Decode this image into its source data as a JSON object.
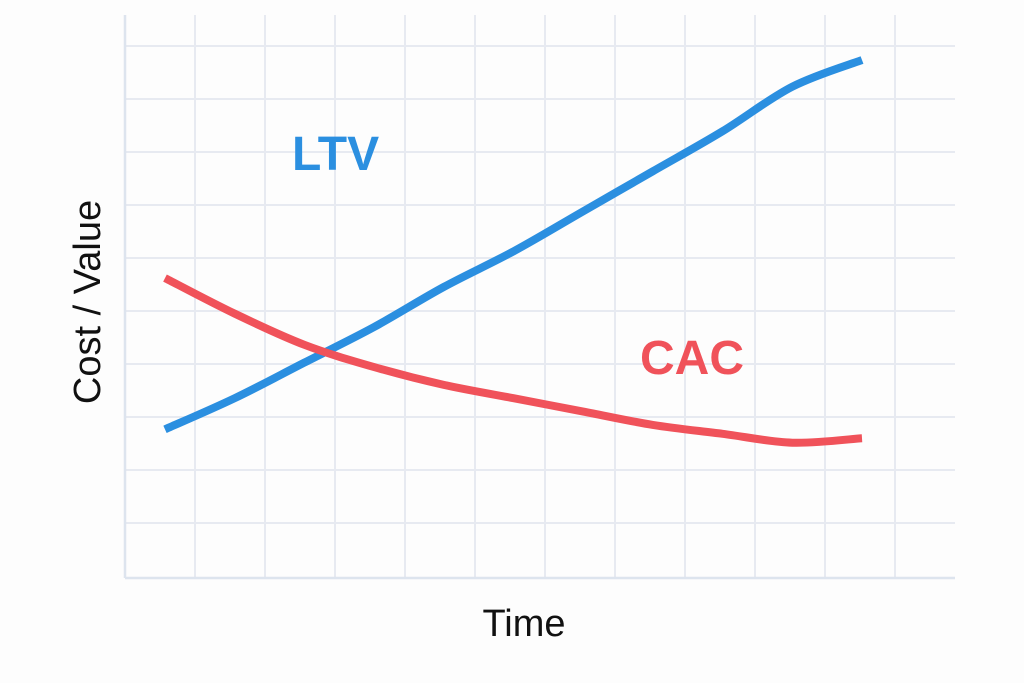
{
  "chart_data": {
    "type": "line",
    "title": "",
    "xlabel": "Time",
    "ylabel": "Cost / Value",
    "xlim": [
      0,
      10
    ],
    "ylim": [
      0,
      10
    ],
    "grid": true,
    "legend": "inline labels",
    "series": [
      {
        "name": "LTV",
        "color": "#2b8fe0",
        "x": [
          0,
          1,
          2,
          3,
          4,
          5,
          6,
          7,
          8,
          9,
          10
        ],
        "y": [
          1.7,
          2.4,
          3.2,
          4.0,
          4.9,
          5.7,
          6.6,
          7.5,
          8.4,
          9.4,
          10.0
        ]
      },
      {
        "name": "CAC",
        "color": "#f0525a",
        "x": [
          0,
          1,
          2,
          3,
          4,
          5,
          6,
          7,
          8,
          9,
          10
        ],
        "y": [
          5.1,
          4.3,
          3.6,
          3.1,
          2.7,
          2.4,
          2.1,
          1.8,
          1.6,
          1.4,
          1.5
        ]
      }
    ]
  }
}
